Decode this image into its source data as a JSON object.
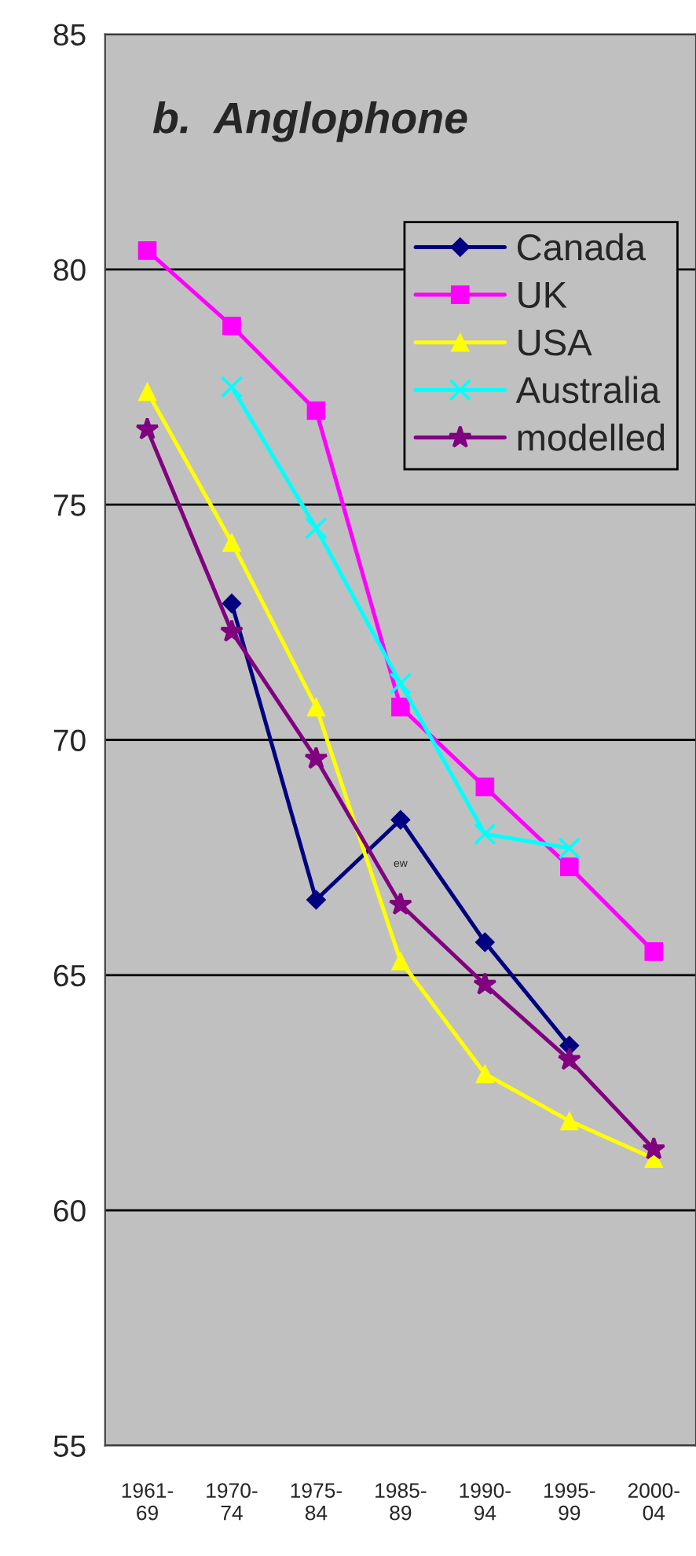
{
  "chart_data": {
    "type": "line",
    "title": "b.  Anglophone",
    "categories": [
      "1961-\n69",
      "1970-\n74",
      "1975-\n84",
      "1985-\n89",
      "1990-\n94",
      "1995-\n99",
      "2000-\n04"
    ],
    "series": [
      {
        "name": "Canada",
        "color": "#000080",
        "marker": "diamond",
        "values": [
          null,
          72.9,
          66.6,
          68.3,
          65.7,
          63.5,
          null
        ]
      },
      {
        "name": "UK",
        "color": "#ff00ff",
        "marker": "square",
        "values": [
          80.4,
          78.8,
          77.0,
          70.7,
          69.0,
          67.3,
          65.5
        ]
      },
      {
        "name": "USA",
        "color": "#ffff00",
        "marker": "triangle",
        "values": [
          77.4,
          74.2,
          70.7,
          65.3,
          62.9,
          61.9,
          61.1
        ]
      },
      {
        "name": "Australia",
        "color": "#00ffff",
        "marker": "cross",
        "values": [
          null,
          77.5,
          74.5,
          71.2,
          68.0,
          67.7,
          null
        ]
      },
      {
        "name": "modelled",
        "color": "#800080",
        "marker": "star",
        "values": [
          76.6,
          72.3,
          69.6,
          66.5,
          64.8,
          63.2,
          61.3
        ]
      }
    ],
    "annotations": [
      "ew"
    ],
    "ylim": [
      55,
      85
    ],
    "yticks": [
      55,
      60,
      65,
      70,
      75,
      80,
      85
    ],
    "grid": "y",
    "legend": "top right"
  }
}
